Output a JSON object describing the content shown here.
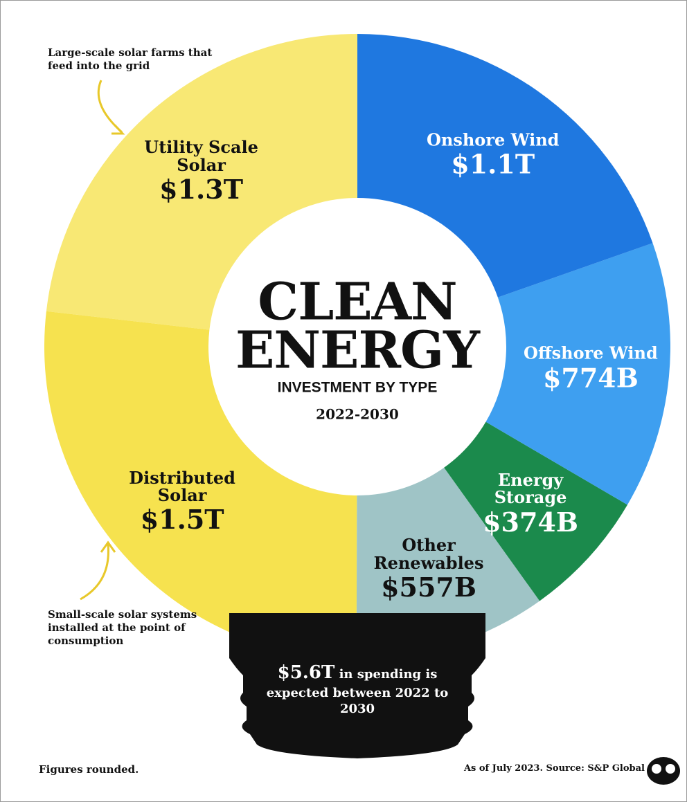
{
  "chart_data": {
    "type": "donut",
    "title": "CLEAN ENERGY",
    "subtitle": "INVESTMENT BY TYPE",
    "period": "2022-2030",
    "categories": [
      "Onshore Wind",
      "Offshore Wind",
      "Energy Storage",
      "Other Renewables",
      "Distributed Solar",
      "Utility Scale Solar"
    ],
    "values": [
      1100,
      774,
      374,
      557,
      1500,
      1300
    ],
    "value_labels": [
      "$1.1T",
      "$774B",
      "$374B",
      "$557B",
      "$1.5T",
      "$1.3T"
    ],
    "colors": [
      "#1f78e0",
      "#3e9ff0",
      "#1b8a4c",
      "#9fc4c6",
      "#f6e24f",
      "#f8e874"
    ],
    "annotations": [
      "Large-scale solar farms that feed into the grid",
      "Small-scale solar systems installed at the point of consumption"
    ],
    "total_label": "$5.6T",
    "total_text": "in spending is expected between 2022 to 2030",
    "note": "Figures rounded.",
    "source": "As of July 2023. Source: S&P Global"
  }
}
